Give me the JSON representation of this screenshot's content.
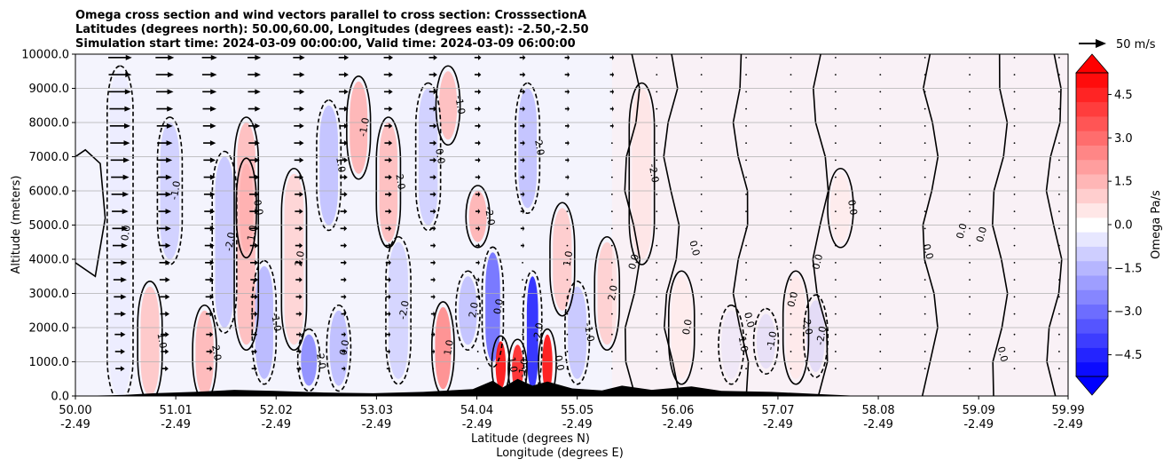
{
  "chart_data": {
    "type": "heatmap",
    "title_lines": [
      "Omega cross section and wind vectors parallel to cross section: CrosssectionA",
      "Latitudes (degrees north): 50.00,60.00, Longitudes (degrees east): -2.50,-2.50",
      "Simulation start time: 2024-03-09 00:00:00, Valid time: 2024-03-09 06:00:00"
    ],
    "xlabel": "Latitude (degrees N)",
    "xlabel2": "Longitude (degrees E)",
    "ylabel": "Altitude (meters)",
    "xlim": [
      50.0,
      59.99
    ],
    "ylim": [
      0,
      10000
    ],
    "x_ticks": [
      {
        "lat": 50.0,
        "lat_label": "50.00",
        "lon_label": "-2.49"
      },
      {
        "lat": 51.01,
        "lat_label": "51.01",
        "lon_label": "-2.49"
      },
      {
        "lat": 52.02,
        "lat_label": "52.02",
        "lon_label": "-2.49"
      },
      {
        "lat": 53.03,
        "lat_label": "53.03",
        "lon_label": "-2.49"
      },
      {
        "lat": 54.04,
        "lat_label": "54.04",
        "lon_label": "-2.49"
      },
      {
        "lat": 55.05,
        "lat_label": "55.05",
        "lon_label": "-2.49"
      },
      {
        "lat": 56.06,
        "lat_label": "56.06",
        "lon_label": "-2.49"
      },
      {
        "lat": 57.07,
        "lat_label": "57.07",
        "lon_label": "-2.49"
      },
      {
        "lat": 58.08,
        "lat_label": "58.08",
        "lon_label": "-2.49"
      },
      {
        "lat": 59.09,
        "lat_label": "59.09",
        "lon_label": "-2.49"
      },
      {
        "lat": 59.99,
        "lat_label": "59.99",
        "lon_label": "-2.49"
      }
    ],
    "y_ticks": [
      {
        "value": 0,
        "label": "0.0"
      },
      {
        "value": 1000,
        "label": "1000.0"
      },
      {
        "value": 2000,
        "label": "2000.0"
      },
      {
        "value": 3000,
        "label": "3000.0"
      },
      {
        "value": 4000,
        "label": "4000.0"
      },
      {
        "value": 5000,
        "label": "5000.0"
      },
      {
        "value": 6000,
        "label": "6000.0"
      },
      {
        "value": 7000,
        "label": "7000.0"
      },
      {
        "value": 8000,
        "label": "8000.0"
      },
      {
        "value": 9000,
        "label": "9000.0"
      },
      {
        "value": 10000,
        "label": "10000.0"
      }
    ],
    "grid": "horizontal",
    "colorbar": {
      "label": "Omega Pa/s",
      "range": [
        -5.25,
        5.25
      ],
      "extend": "both",
      "cmap": "bwr",
      "ticks": [
        {
          "value": 4.5,
          "label": "4.5"
        },
        {
          "value": 3.0,
          "label": "3.0"
        },
        {
          "value": 1.5,
          "label": "1.5"
        },
        {
          "value": 0.0,
          "label": "0.0"
        },
        {
          "value": -1.5,
          "label": "−1.5"
        },
        {
          "value": -3.0,
          "label": "−3.0"
        },
        {
          "value": -4.5,
          "label": "−4.5"
        }
      ]
    },
    "quiver_key": {
      "label": "50 m/s",
      "speed": 50
    },
    "omega_features": [
      {
        "lat": 50.45,
        "z0": 0,
        "z1": 9500,
        "omega": -0.4
      },
      {
        "lat": 50.75,
        "z0": 0,
        "z1": 3200,
        "omega": 1.2
      },
      {
        "lat": 50.95,
        "z0": 4000,
        "z1": 8000,
        "omega": -1.0
      },
      {
        "lat": 51.3,
        "z0": 0,
        "z1": 2500,
        "omega": 1.5
      },
      {
        "lat": 51.5,
        "z0": 2000,
        "z1": 7000,
        "omega": -1.2
      },
      {
        "lat": 51.72,
        "z0": 4200,
        "z1": 6800,
        "omega": 3.6
      },
      {
        "lat": 51.72,
        "z0": 1500,
        "z1": 8000,
        "omega": 1.4
      },
      {
        "lat": 51.9,
        "z0": 500,
        "z1": 3800,
        "omega": -1.5
      },
      {
        "lat": 52.2,
        "z0": 1500,
        "z1": 6500,
        "omega": 0.9
      },
      {
        "lat": 52.35,
        "z0": 300,
        "z1": 1800,
        "omega": -2.4
      },
      {
        "lat": 52.65,
        "z0": 300,
        "z1": 2500,
        "omega": -1.4
      },
      {
        "lat": 52.55,
        "z0": 5000,
        "z1": 8500,
        "omega": -1.3
      },
      {
        "lat": 52.85,
        "z0": 6500,
        "z1": 9200,
        "omega": 1.6
      },
      {
        "lat": 53.15,
        "z0": 4500,
        "z1": 8000,
        "omega": 1.4
      },
      {
        "lat": 53.25,
        "z0": 500,
        "z1": 4500,
        "omega": -0.9
      },
      {
        "lat": 53.55,
        "z0": 5000,
        "z1": 9000,
        "omega": -1.0
      },
      {
        "lat": 53.7,
        "z0": 200,
        "z1": 2600,
        "omega": 2.4
      },
      {
        "lat": 53.75,
        "z0": 7500,
        "z1": 9500,
        "omega": 1.4
      },
      {
        "lat": 53.95,
        "z0": 1500,
        "z1": 3500,
        "omega": -1.3
      },
      {
        "lat": 54.05,
        "z0": 4500,
        "z1": 6000,
        "omega": 1.6
      },
      {
        "lat": 54.2,
        "z0": 1000,
        "z1": 4200,
        "omega": -3.0
      },
      {
        "lat": 54.28,
        "z0": 200,
        "z1": 1600,
        "omega": 5.0
      },
      {
        "lat": 54.45,
        "z0": 100,
        "z1": 1500,
        "omega": 4.5
      },
      {
        "lat": 54.55,
        "z0": 5500,
        "z1": 9000,
        "omega": -1.3
      },
      {
        "lat": 54.6,
        "z0": 200,
        "z1": 3500,
        "omega": -4.5
      },
      {
        "lat": 54.75,
        "z0": 100,
        "z1": 1800,
        "omega": 5.0
      },
      {
        "lat": 54.9,
        "z0": 2500,
        "z1": 5500,
        "omega": 1.1
      },
      {
        "lat": 55.05,
        "z0": 500,
        "z1": 3200,
        "omega": -1.2
      },
      {
        "lat": 55.35,
        "z0": 1500,
        "z1": 4500,
        "omega": 1.0
      },
      {
        "lat": 55.7,
        "z0": 4000,
        "z1": 9000,
        "omega": 0.8
      },
      {
        "lat": 56.1,
        "z0": 500,
        "z1": 3500,
        "omega": 0.5
      },
      {
        "lat": 56.6,
        "z0": 500,
        "z1": 2500,
        "omega": -0.7
      },
      {
        "lat": 56.95,
        "z0": 800,
        "z1": 2400,
        "omega": -1.1
      },
      {
        "lat": 57.25,
        "z0": 500,
        "z1": 3500,
        "omega": 0.6
      },
      {
        "lat": 57.45,
        "z0": 700,
        "z1": 2800,
        "omega": -1.3
      },
      {
        "lat": 57.7,
        "z0": 4500,
        "z1": 6500,
        "omega": 0.5
      }
    ],
    "contour_label_values": [
      "0.0",
      "1.0",
      "-1.0",
      "2.0",
      "-2.0"
    ],
    "wind_rows_m": [
      800,
      1300,
      1800,
      2400,
      2900,
      3400,
      3900,
      4400,
      4900,
      5400,
      5900,
      6400,
      6900,
      7400,
      7900,
      8400,
      8900,
      9400,
      9900
    ],
    "wind_columns": [
      {
        "lat": 50.45,
        "u": 28
      },
      {
        "lat": 50.9,
        "u": 22
      },
      {
        "lat": 51.35,
        "u": 18
      },
      {
        "lat": 51.8,
        "u": 16
      },
      {
        "lat": 52.25,
        "u": 14
      },
      {
        "lat": 52.7,
        "u": 12
      },
      {
        "lat": 53.15,
        "u": 11
      },
      {
        "lat": 53.6,
        "u": 10
      },
      {
        "lat": 54.05,
        "u": 8
      },
      {
        "lat": 54.5,
        "u": 7
      },
      {
        "lat": 54.95,
        "u": 6
      },
      {
        "lat": 55.4,
        "u": 5
      },
      {
        "lat": 55.85,
        "u": 4
      },
      {
        "lat": 56.3,
        "u": 3
      },
      {
        "lat": 56.75,
        "u": 3
      },
      {
        "lat": 57.2,
        "u": 3
      },
      {
        "lat": 57.65,
        "u": 3
      },
      {
        "lat": 58.1,
        "u": 2
      },
      {
        "lat": 58.55,
        "u": 2
      },
      {
        "lat": 59.0,
        "u": 2
      },
      {
        "lat": 59.45,
        "u": 2
      },
      {
        "lat": 59.9,
        "u": 2
      }
    ],
    "terrain": [
      {
        "lat": 50.0,
        "h": 0
      },
      {
        "lat": 50.5,
        "h": 30
      },
      {
        "lat": 50.8,
        "h": 80
      },
      {
        "lat": 51.2,
        "h": 120
      },
      {
        "lat": 51.6,
        "h": 180
      },
      {
        "lat": 52.0,
        "h": 150
      },
      {
        "lat": 52.5,
        "h": 100
      },
      {
        "lat": 53.0,
        "h": 80
      },
      {
        "lat": 53.5,
        "h": 120
      },
      {
        "lat": 54.0,
        "h": 200
      },
      {
        "lat": 54.2,
        "h": 450
      },
      {
        "lat": 54.3,
        "h": 250
      },
      {
        "lat": 54.45,
        "h": 500
      },
      {
        "lat": 54.6,
        "h": 300
      },
      {
        "lat": 54.75,
        "h": 420
      },
      {
        "lat": 55.0,
        "h": 220
      },
      {
        "lat": 55.3,
        "h": 160
      },
      {
        "lat": 55.5,
        "h": 300
      },
      {
        "lat": 55.8,
        "h": 180
      },
      {
        "lat": 56.2,
        "h": 280
      },
      {
        "lat": 56.5,
        "h": 150
      },
      {
        "lat": 57.0,
        "h": 120
      },
      {
        "lat": 57.3,
        "h": 80
      },
      {
        "lat": 57.6,
        "h": 40
      },
      {
        "lat": 57.9,
        "h": 0
      },
      {
        "lat": 59.99,
        "h": 0
      }
    ]
  }
}
